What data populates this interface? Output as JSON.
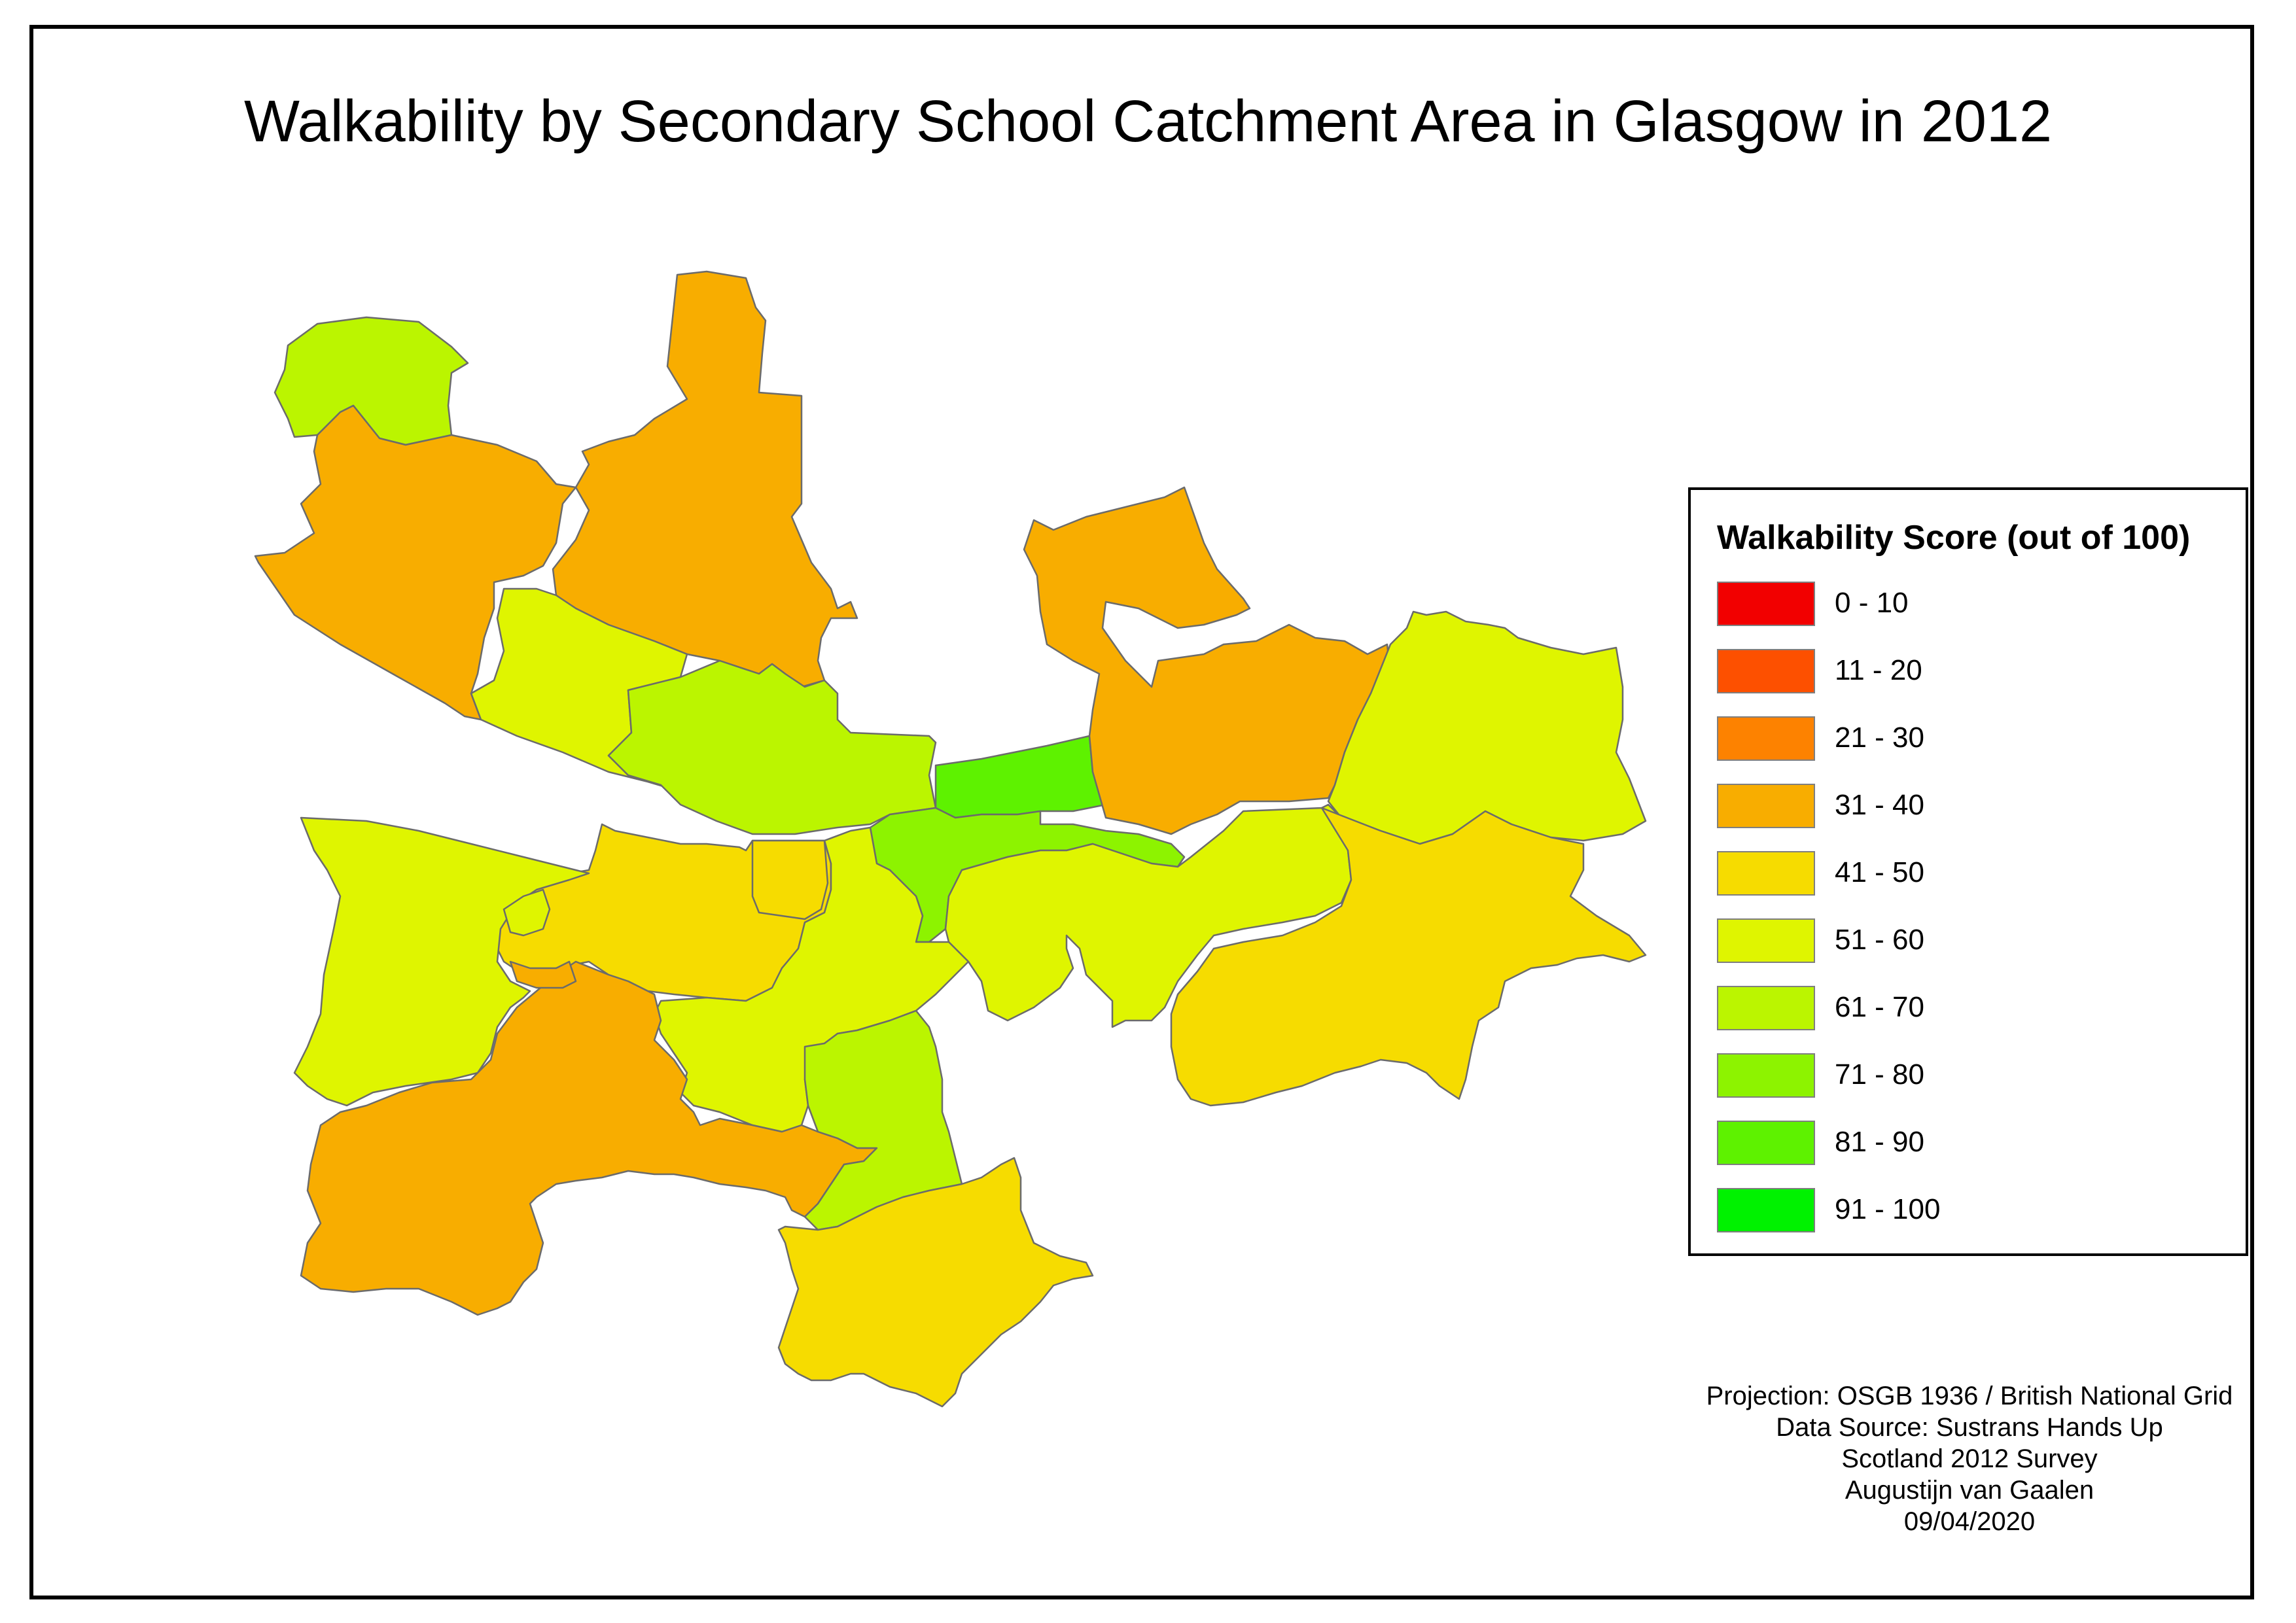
{
  "title": "Walkability by Secondary School Catchment Area in Glasgow in 2012",
  "legend": {
    "title": "Walkability Score (out of 100)",
    "items": [
      {
        "label": "0 - 10",
        "color": "#f20000"
      },
      {
        "label": "11 - 20",
        "color": "#fd5000"
      },
      {
        "label": "21 - 30",
        "color": "#fd8200"
      },
      {
        "label": "31 - 40",
        "color": "#f8ad00"
      },
      {
        "label": "41 - 50",
        "color": "#f6dc00"
      },
      {
        "label": "51 - 60",
        "color": "#dff500"
      },
      {
        "label": "61 - 70",
        "color": "#bbf500"
      },
      {
        "label": "71 - 80",
        "color": "#8df300"
      },
      {
        "label": "81 - 90",
        "color": "#5ef200"
      },
      {
        "label": "91 - 100",
        "color": "#00f200"
      }
    ]
  },
  "credits": [
    "Projection: OSGB 1936 / British National Grid",
    "Data Source: Sustrans Hands Up",
    "Scotland 2012 Survey",
    "Augustijn van Gaalen",
    "09/04/2020"
  ],
  "map": {
    "catchment_areas": [
      {
        "score_class": "61 - 70",
        "color": "#bbf500"
      },
      {
        "score_class": "31 - 40",
        "color": "#f8ad00"
      },
      {
        "score_class": "31 - 40",
        "color": "#f8ad00"
      },
      {
        "score_class": "51 - 60",
        "color": "#dff500"
      },
      {
        "score_class": "61 - 70",
        "color": "#bbf500"
      },
      {
        "score_class": "81 - 90",
        "color": "#5ef200"
      },
      {
        "score_class": "71 - 80",
        "color": "#8df300"
      },
      {
        "score_class": "31 - 40",
        "color": "#f8ad00"
      },
      {
        "score_class": "51 - 60",
        "color": "#dff500"
      },
      {
        "score_class": "51 - 60",
        "color": "#dff500"
      },
      {
        "score_class": "41 - 50",
        "color": "#f6dc00"
      },
      {
        "score_class": "41 - 50",
        "color": "#f6dc00"
      },
      {
        "score_class": "51 - 60",
        "color": "#dff500"
      },
      {
        "score_class": "51 - 60",
        "color": "#dff500"
      },
      {
        "score_class": "41 - 50",
        "color": "#f6dc00"
      },
      {
        "score_class": "31 - 40",
        "color": "#f8ad00"
      },
      {
        "score_class": "51 - 60",
        "color": "#dff500"
      },
      {
        "score_class": "61 - 70",
        "color": "#bbf500"
      },
      {
        "score_class": "41 - 50",
        "color": "#f6dc00"
      },
      {
        "score_class": "31 - 40",
        "color": "#f8ad00"
      }
    ]
  }
}
